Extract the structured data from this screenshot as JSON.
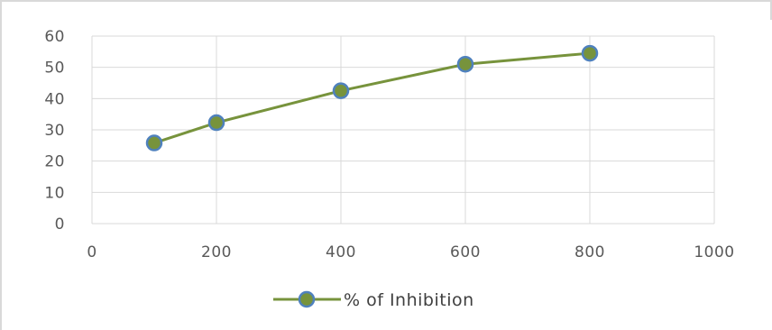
{
  "chart_data": {
    "type": "line",
    "title": "",
    "xlabel": "",
    "ylabel": "",
    "xlim": [
      0,
      1000
    ],
    "ylim": [
      0,
      60
    ],
    "xticks": [
      0,
      200,
      400,
      600,
      800,
      1000
    ],
    "yticks": [
      0,
      10,
      20,
      30,
      40,
      50,
      60
    ],
    "grid": true,
    "legend_position": "bottom",
    "series": [
      {
        "name": "% of Inhibition",
        "color": "#77933c",
        "marker_color": "#77933c",
        "marker_edge_color": "#4f81bd",
        "x": [
          100,
          200,
          400,
          600,
          800
        ],
        "y": [
          25.8,
          32.3,
          42.5,
          51.0,
          54.5
        ]
      }
    ]
  }
}
